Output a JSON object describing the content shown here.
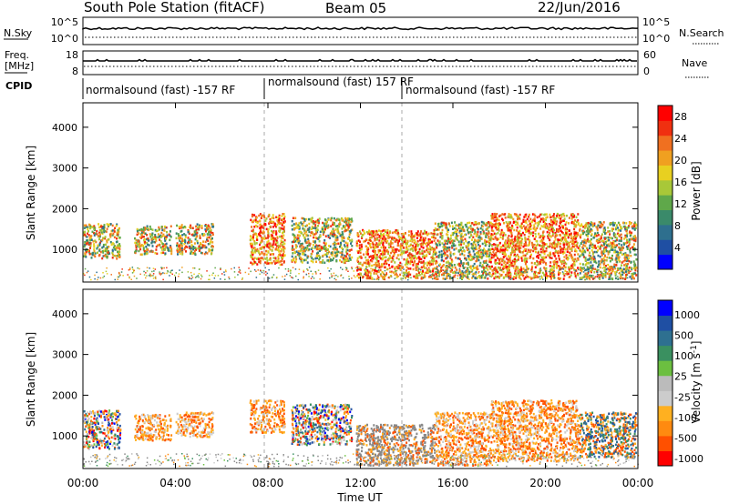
{
  "header": {
    "station_title": "South Pole Station (fitACF)",
    "beam": "Beam 05",
    "date": "22/Jun/2016"
  },
  "sky_panel": {
    "left_label": "N.Sky",
    "right_label": "N.Search",
    "left_ticks": [
      "10^5",
      "10^0"
    ],
    "right_ticks": [
      "10^5",
      "10^0"
    ]
  },
  "freq_panel": {
    "left_label_line1": "Freq.",
    "left_label_line2": "[MHz]",
    "right_label": "Nave",
    "left_ticks": [
      "18",
      "8"
    ],
    "right_ticks": [
      "60",
      "0"
    ]
  },
  "cpid_panel": {
    "label": "CPID",
    "segments": [
      {
        "label": "normalsound (fast) -157 RF",
        "start_hour": 0
      },
      {
        "label": "normalsound (fast) 157 RF",
        "start_hour": 8
      },
      {
        "label": "normalsound (fast) -157 RF",
        "start_hour": 14
      }
    ]
  },
  "colors": {
    "power_scale": [
      "#0000ff",
      "#1f4fa3",
      "#2e6f8e",
      "#3a8a6a",
      "#5fa84a",
      "#a8c838",
      "#e8d020",
      "#f0a020",
      "#f07020",
      "#f03010",
      "#ff0000"
    ],
    "velocity_scale": [
      "#ff0000",
      "#ff5000",
      "#ff8a10",
      "#ffb020",
      "#cccccc",
      "#bbbbbb",
      "#6cbf40",
      "#3a9060",
      "#2e7090",
      "#1f4fa3",
      "#0000ff"
    ],
    "ground_scatter": "#888888"
  },
  "chart_data": [
    {
      "type": "heatmap",
      "name": "power",
      "ylabel": "Slant Range [km]",
      "yticks": [
        "1000",
        "2000",
        "3000",
        "4000"
      ],
      "ylim": [
        200,
        4600
      ],
      "x_range_hours": [
        0,
        24
      ],
      "colorbar_label": "Power [dB]",
      "colorbar_ticks": [
        "4",
        "8",
        "12",
        "16",
        "20",
        "24",
        "28"
      ],
      "colorbar_range": [
        0,
        30
      ],
      "scatter_regions": [
        {
          "t_start": 0.0,
          "t_end": 1.6,
          "range_low": 800,
          "range_high": 1650,
          "level": "mixed"
        },
        {
          "t_start": 2.2,
          "t_end": 3.8,
          "range_low": 900,
          "range_high": 1600,
          "level": "mixed"
        },
        {
          "t_start": 4.0,
          "t_end": 5.6,
          "range_low": 900,
          "range_high": 1650,
          "level": "mixed"
        },
        {
          "t_start": 7.2,
          "t_end": 8.7,
          "range_low": 650,
          "range_high": 1900,
          "level": "high"
        },
        {
          "t_start": 9.0,
          "t_end": 11.6,
          "range_low": 700,
          "range_high": 1800,
          "level": "mixed"
        },
        {
          "t_start": 11.8,
          "t_end": 15.2,
          "range_low": 300,
          "range_high": 1500,
          "level": "high"
        },
        {
          "t_start": 15.2,
          "t_end": 17.6,
          "range_low": 300,
          "range_high": 1700,
          "level": "mixed"
        },
        {
          "t_start": 17.6,
          "t_end": 21.4,
          "range_low": 300,
          "range_high": 1900,
          "level": "high"
        },
        {
          "t_start": 21.4,
          "t_end": 23.9,
          "range_low": 300,
          "range_high": 1700,
          "level": "mixed"
        }
      ]
    },
    {
      "type": "heatmap",
      "name": "velocity",
      "ylabel": "Slant Range [km]",
      "yticks": [
        "1000",
        "2000",
        "3000",
        "4000"
      ],
      "ylim": [
        200,
        4600
      ],
      "x_range_hours": [
        0,
        24
      ],
      "xlabel": "Time UT",
      "xticks": [
        "00:00",
        "04:00",
        "08:00",
        "12:00",
        "16:00",
        "20:00",
        "00:00"
      ],
      "colorbar_label": "Velocity [m s",
      "colorbar_label_sup": "-1",
      "colorbar_label_end": "]",
      "colorbar_ticks": [
        "1000",
        "500",
        "100",
        "25",
        "-25",
        "-100",
        "-500",
        "-1000"
      ],
      "scatter_regions": [
        {
          "t_start": 0.0,
          "t_end": 1.6,
          "range_low": 700,
          "range_high": 1650,
          "level": "mixed"
        },
        {
          "t_start": 2.2,
          "t_end": 3.8,
          "range_low": 900,
          "range_high": 1550,
          "level": "toward"
        },
        {
          "t_start": 4.0,
          "t_end": 5.6,
          "range_low": 1000,
          "range_high": 1600,
          "level": "toward"
        },
        {
          "t_start": 7.2,
          "t_end": 8.7,
          "range_low": 1100,
          "range_high": 1900,
          "level": "toward"
        },
        {
          "t_start": 9.0,
          "t_end": 11.6,
          "range_low": 800,
          "range_high": 1800,
          "level": "mixed"
        },
        {
          "t_start": 11.8,
          "t_end": 15.2,
          "range_low": 300,
          "range_high": 1300,
          "level": "ground"
        },
        {
          "t_start": 15.2,
          "t_end": 17.6,
          "range_low": 300,
          "range_high": 1600,
          "level": "toward"
        },
        {
          "t_start": 17.6,
          "t_end": 21.4,
          "range_low": 400,
          "range_high": 1900,
          "level": "toward"
        },
        {
          "t_start": 21.4,
          "t_end": 23.9,
          "range_low": 500,
          "range_high": 1600,
          "level": "away"
        }
      ]
    }
  ]
}
